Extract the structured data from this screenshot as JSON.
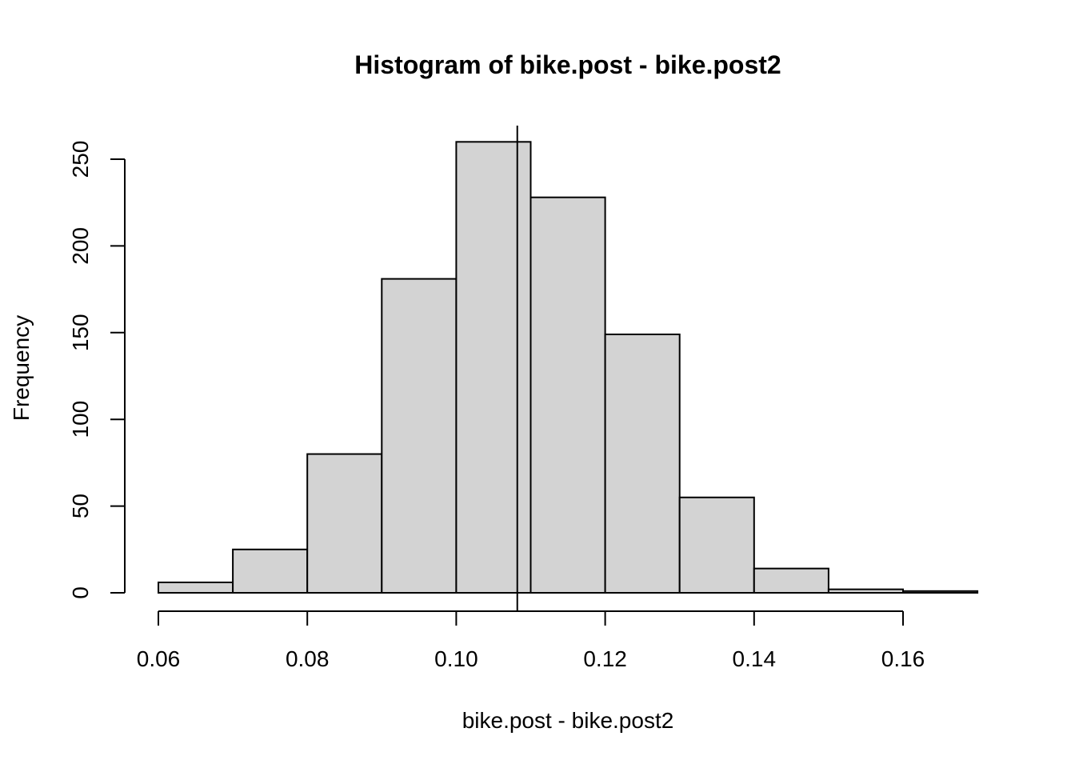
{
  "chart_data": {
    "type": "bar",
    "subtype": "histogram",
    "title": "Histogram of bike.post - bike.post2",
    "xlabel": "bike.post - bike.post2",
    "ylabel": "Frequency",
    "bins": [
      {
        "x0": 0.06,
        "x1": 0.07,
        "count": 6
      },
      {
        "x0": 0.07,
        "x1": 0.08,
        "count": 25
      },
      {
        "x0": 0.08,
        "x1": 0.09,
        "count": 80
      },
      {
        "x0": 0.09,
        "x1": 0.1,
        "count": 181
      },
      {
        "x0": 0.1,
        "x1": 0.11,
        "count": 260
      },
      {
        "x0": 0.11,
        "x1": 0.12,
        "count": 228
      },
      {
        "x0": 0.12,
        "x1": 0.13,
        "count": 149
      },
      {
        "x0": 0.13,
        "x1": 0.14,
        "count": 55
      },
      {
        "x0": 0.14,
        "x1": 0.15,
        "count": 14
      },
      {
        "x0": 0.15,
        "x1": 0.16,
        "count": 2
      },
      {
        "x0": 0.16,
        "x1": 0.17,
        "count": 1
      }
    ],
    "xticks": [
      0.06,
      0.08,
      0.1,
      0.12,
      0.14,
      0.16
    ],
    "xtick_labels": [
      "0.06",
      "0.08",
      "0.10",
      "0.12",
      "0.14",
      "0.16"
    ],
    "yticks": [
      0,
      50,
      100,
      150,
      200,
      250
    ],
    "ytick_labels": [
      "0",
      "50",
      "100",
      "150",
      "200",
      "250"
    ],
    "xlim": [
      0.06,
      0.16
    ],
    "ylim": [
      0,
      250
    ],
    "vline_x": 0.1082,
    "bar_fill": "#d3d3d3",
    "bar_stroke": "#000000",
    "grid": false,
    "legend": "none"
  }
}
